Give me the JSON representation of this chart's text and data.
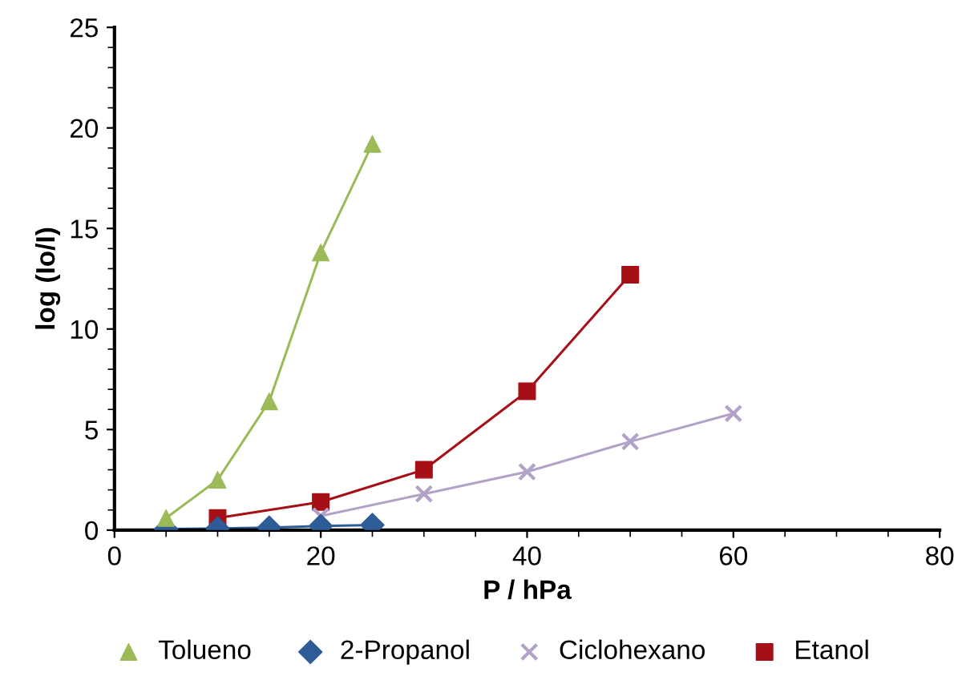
{
  "chart_data": {
    "type": "line",
    "xlabel": "P / hPa",
    "ylabel": "log (Io/I)",
    "xlim": [
      0,
      80
    ],
    "xticks": [
      0,
      20,
      40,
      60,
      80
    ],
    "ylim": [
      0,
      25
    ],
    "yticks": [
      0,
      5,
      10,
      15,
      20,
      25
    ],
    "grid": false,
    "legend": "bottom",
    "line_style": "solid",
    "series": [
      {
        "name": "Tolueno",
        "color": "#9bbb59",
        "marker": "triangle",
        "x": [
          5,
          10,
          15,
          20,
          25
        ],
        "values": [
          0.6,
          2.5,
          6.4,
          13.8,
          19.2
        ]
      },
      {
        "name": "2-Propanol",
        "color": "#2e5c96",
        "marker": "diamond",
        "x": [
          5,
          10,
          15,
          20,
          25
        ],
        "values": [
          0.05,
          0.08,
          0.12,
          0.2,
          0.25
        ]
      },
      {
        "name": "Ciclohexano",
        "color": "#b3a2c7",
        "marker": "cross",
        "x": [
          20,
          30,
          40,
          50,
          60
        ],
        "values": [
          0.7,
          1.8,
          2.9,
          4.4,
          5.8
        ]
      },
      {
        "name": "Etanol",
        "color": "#a50f15",
        "marker": "square",
        "x": [
          10,
          20,
          30,
          40,
          50
        ],
        "values": [
          0.6,
          1.4,
          3.0,
          6.9,
          12.7
        ]
      }
    ]
  }
}
